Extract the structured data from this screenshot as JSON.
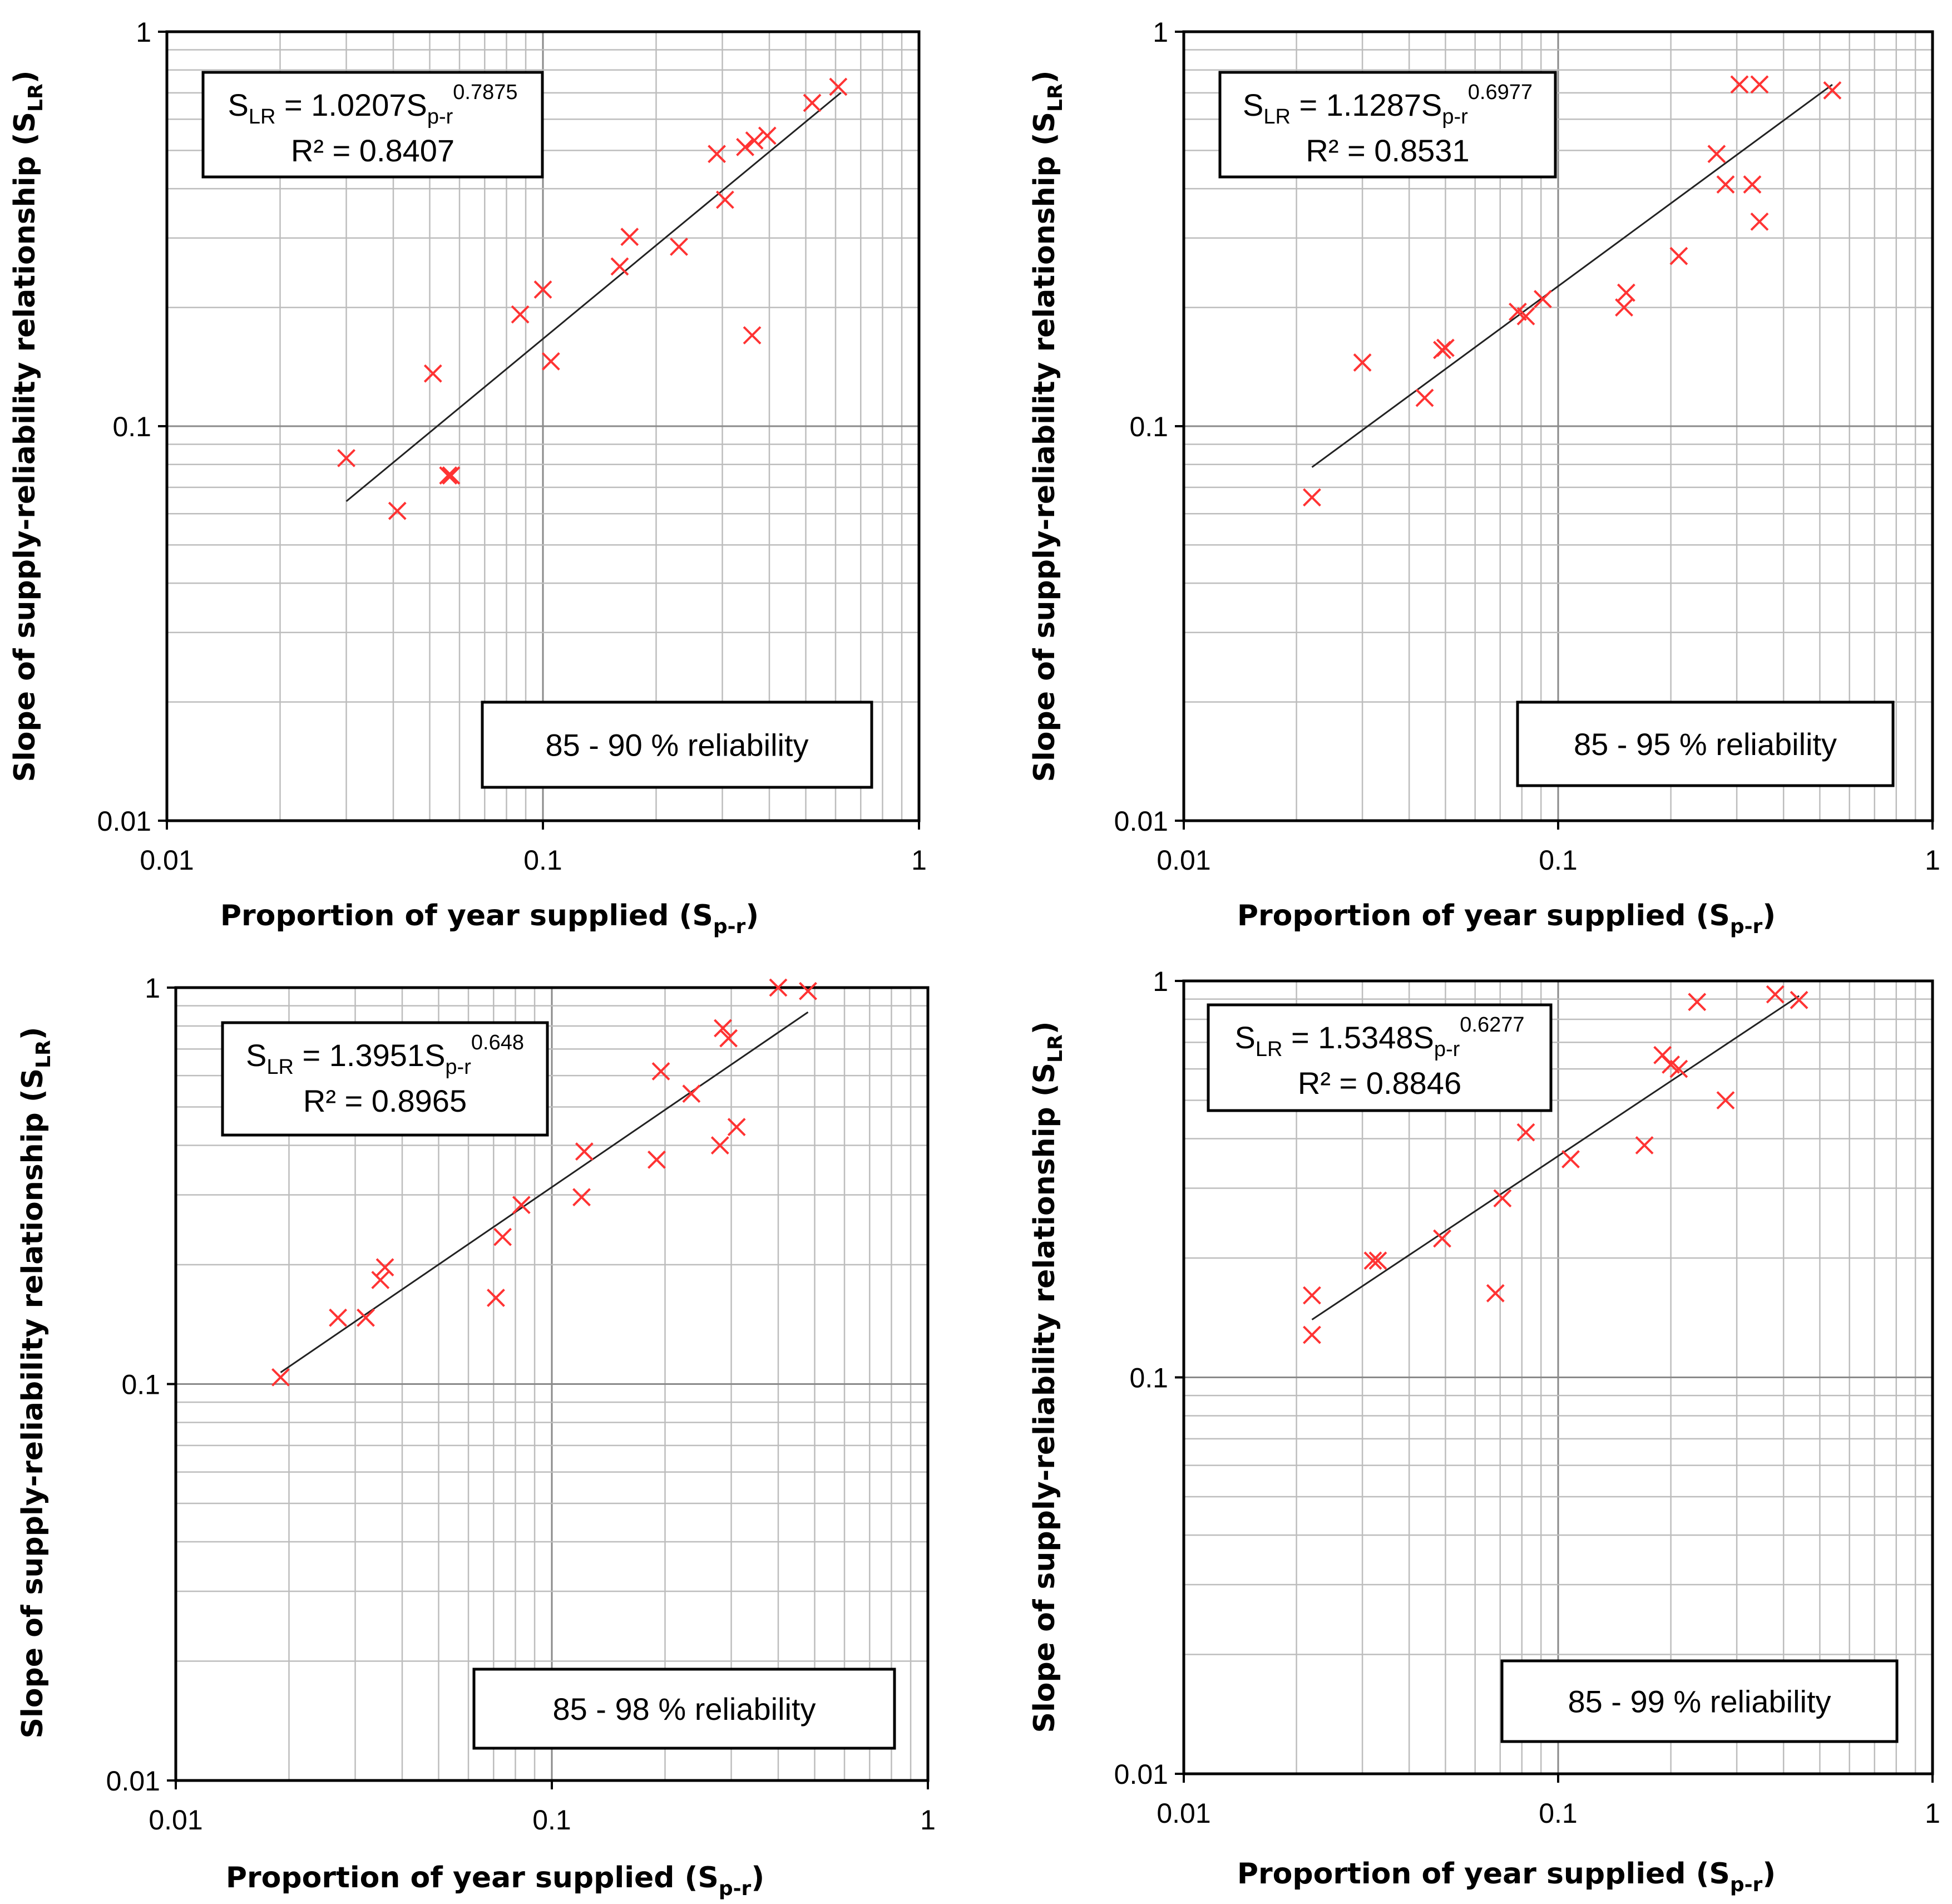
{
  "chart_data": [
    {
      "type": "scatter",
      "scale": "log-log",
      "xlabel": {
        "main": "Proportion of year supplied (S",
        "sub": "p-r",
        "end": ")"
      },
      "ylabel": {
        "main": "Slope of supply-reliability relationship (S",
        "sub": "LR",
        "end": ")"
      },
      "xlim": [
        0.01,
        1
      ],
      "ylim": [
        0.01,
        1
      ],
      "x_ticks": [
        "0.01",
        "0.1",
        "1"
      ],
      "y_ticks": [
        "0.01",
        "0.1",
        "1"
      ],
      "grid": "major and minor",
      "marker": "x",
      "marker_color": "#ff3333",
      "equation": {
        "prefix": "S",
        "prefix_sub": "LR",
        "mid": " = 1.0207S",
        "mid_sub": "p-r",
        "exponent": "0.7875"
      },
      "r_squared": "R² = 0.8407",
      "reliability_label": "85 - 90 % reliability",
      "fit": {
        "a": 1.0207,
        "b": 0.7875,
        "x_range": [
          0.03,
          0.62
        ]
      },
      "points": [
        {
          "x": 0.03,
          "y": 0.083
        },
        {
          "x": 0.041,
          "y": 0.061
        },
        {
          "x": 0.051,
          "y": 0.136
        },
        {
          "x": 0.056,
          "y": 0.075
        },
        {
          "x": 0.057,
          "y": 0.075
        },
        {
          "x": 0.087,
          "y": 0.192
        },
        {
          "x": 0.1,
          "y": 0.222
        },
        {
          "x": 0.105,
          "y": 0.146
        },
        {
          "x": 0.16,
          "y": 0.254
        },
        {
          "x": 0.17,
          "y": 0.302
        },
        {
          "x": 0.23,
          "y": 0.285
        },
        {
          "x": 0.29,
          "y": 0.49
        },
        {
          "x": 0.305,
          "y": 0.375
        },
        {
          "x": 0.345,
          "y": 0.51
        },
        {
          "x": 0.36,
          "y": 0.17
        },
        {
          "x": 0.365,
          "y": 0.53
        },
        {
          "x": 0.395,
          "y": 0.545
        },
        {
          "x": 0.52,
          "y": 0.66
        },
        {
          "x": 0.61,
          "y": 0.725
        }
      ]
    },
    {
      "type": "scatter",
      "scale": "log-log",
      "xlabel": {
        "main": "Proportion of year supplied (S",
        "sub": "p-r",
        "end": ")"
      },
      "ylabel": {
        "main": "Slope of supply-reliability relationship (S",
        "sub": "LR",
        "end": ")"
      },
      "xlim": [
        0.01,
        1
      ],
      "ylim": [
        0.01,
        1
      ],
      "x_ticks": [
        "0.01",
        "0.1",
        "1"
      ],
      "y_ticks": [
        "0.01",
        "0.1",
        "1"
      ],
      "grid": "major and minor",
      "marker": "x",
      "marker_color": "#ff3333",
      "equation": {
        "prefix": "S",
        "prefix_sub": "LR",
        "mid": " = 1.1287S",
        "mid_sub": "p-r",
        "exponent": "0.6977"
      },
      "r_squared": "R² = 0.8531",
      "reliability_label": "85 - 95 % reliability",
      "fit": {
        "a": 1.1287,
        "b": 0.6977,
        "x_range": [
          0.022,
          0.54
        ]
      },
      "points": [
        {
          "x": 0.022,
          "y": 0.066
        },
        {
          "x": 0.03,
          "y": 0.145
        },
        {
          "x": 0.044,
          "y": 0.118
        },
        {
          "x": 0.049,
          "y": 0.156
        },
        {
          "x": 0.05,
          "y": 0.158
        },
        {
          "x": 0.078,
          "y": 0.195
        },
        {
          "x": 0.082,
          "y": 0.19
        },
        {
          "x": 0.091,
          "y": 0.21
        },
        {
          "x": 0.15,
          "y": 0.2
        },
        {
          "x": 0.152,
          "y": 0.218
        },
        {
          "x": 0.21,
          "y": 0.27
        },
        {
          "x": 0.265,
          "y": 0.49
        },
        {
          "x": 0.28,
          "y": 0.41
        },
        {
          "x": 0.305,
          "y": 0.735
        },
        {
          "x": 0.33,
          "y": 0.41
        },
        {
          "x": 0.345,
          "y": 0.735
        },
        {
          "x": 0.345,
          "y": 0.33
        },
        {
          "x": 0.54,
          "y": 0.71
        }
      ]
    },
    {
      "type": "scatter",
      "scale": "log-log",
      "xlabel": {
        "main": "Proportion of year supplied (S",
        "sub": "p-r",
        "end": ")"
      },
      "ylabel": {
        "main": "Slope of supply-reliability relationship (S",
        "sub": "LR",
        "end": ")"
      },
      "xlim": [
        0.01,
        1
      ],
      "ylim": [
        0.01,
        1
      ],
      "x_ticks": [
        "0.01",
        "0.1",
        "1"
      ],
      "y_ticks": [
        "0.01",
        "0.1",
        "1"
      ],
      "grid": "major and minor",
      "marker": "x",
      "marker_color": "#ff3333",
      "equation": {
        "prefix": "S",
        "prefix_sub": "LR",
        "mid": " = 1.3951S",
        "mid_sub": "p-r",
        "exponent": "0.648"
      },
      "r_squared": "R² = 0.8965",
      "reliability_label": "85 - 98 % reliability",
      "fit": {
        "a": 1.3951,
        "b": 0.648,
        "x_range": [
          0.019,
          0.48
        ]
      },
      "points": [
        {
          "x": 0.019,
          "y": 0.104
        },
        {
          "x": 0.027,
          "y": 0.147
        },
        {
          "x": 0.032,
          "y": 0.147
        },
        {
          "x": 0.035,
          "y": 0.183
        },
        {
          "x": 0.036,
          "y": 0.197
        },
        {
          "x": 0.071,
          "y": 0.165
        },
        {
          "x": 0.074,
          "y": 0.235
        },
        {
          "x": 0.083,
          "y": 0.283
        },
        {
          "x": 0.12,
          "y": 0.296
        },
        {
          "x": 0.122,
          "y": 0.386
        },
        {
          "x": 0.19,
          "y": 0.368
        },
        {
          "x": 0.195,
          "y": 0.615
        },
        {
          "x": 0.235,
          "y": 0.54
        },
        {
          "x": 0.28,
          "y": 0.4
        },
        {
          "x": 0.285,
          "y": 0.79
        },
        {
          "x": 0.295,
          "y": 0.745
        },
        {
          "x": 0.31,
          "y": 0.445
        },
        {
          "x": 0.4,
          "y": 1.0
        },
        {
          "x": 0.48,
          "y": 0.98
        }
      ]
    },
    {
      "type": "scatter",
      "scale": "log-log",
      "xlabel": {
        "main": "Proportion of year supplied (S",
        "sub": "p-r",
        "end": ")"
      },
      "ylabel": {
        "main": "Slope of supply-reliability relationship (S",
        "sub": "LR",
        "end": ")"
      },
      "xlim": [
        0.01,
        1
      ],
      "ylim": [
        0.01,
        1
      ],
      "x_ticks": [
        "0.01",
        "0.1",
        "1"
      ],
      "y_ticks": [
        "0.01",
        "0.1",
        "1"
      ],
      "grid": "major and minor",
      "marker": "x",
      "marker_color": "#ff3333",
      "equation": {
        "prefix": "S",
        "prefix_sub": "LR",
        "mid": " = 1.5348S",
        "mid_sub": "p-r",
        "exponent": "0.6277"
      },
      "r_squared": "R² = 0.8846",
      "reliability_label": "85 - 99 % reliability",
      "fit": {
        "a": 1.5348,
        "b": 0.6277,
        "x_range": [
          0.022,
          0.44
        ]
      },
      "points": [
        {
          "x": 0.022,
          "y": 0.161
        },
        {
          "x": 0.022,
          "y": 0.128
        },
        {
          "x": 0.032,
          "y": 0.197
        },
        {
          "x": 0.033,
          "y": 0.197
        },
        {
          "x": 0.049,
          "y": 0.224
        },
        {
          "x": 0.068,
          "y": 0.163
        },
        {
          "x": 0.071,
          "y": 0.283
        },
        {
          "x": 0.082,
          "y": 0.415
        },
        {
          "x": 0.108,
          "y": 0.355
        },
        {
          "x": 0.17,
          "y": 0.385
        },
        {
          "x": 0.19,
          "y": 0.65
        },
        {
          "x": 0.2,
          "y": 0.615
        },
        {
          "x": 0.21,
          "y": 0.6
        },
        {
          "x": 0.235,
          "y": 0.885
        },
        {
          "x": 0.28,
          "y": 0.5
        },
        {
          "x": 0.38,
          "y": 0.925
        },
        {
          "x": 0.44,
          "y": 0.895
        }
      ]
    }
  ]
}
